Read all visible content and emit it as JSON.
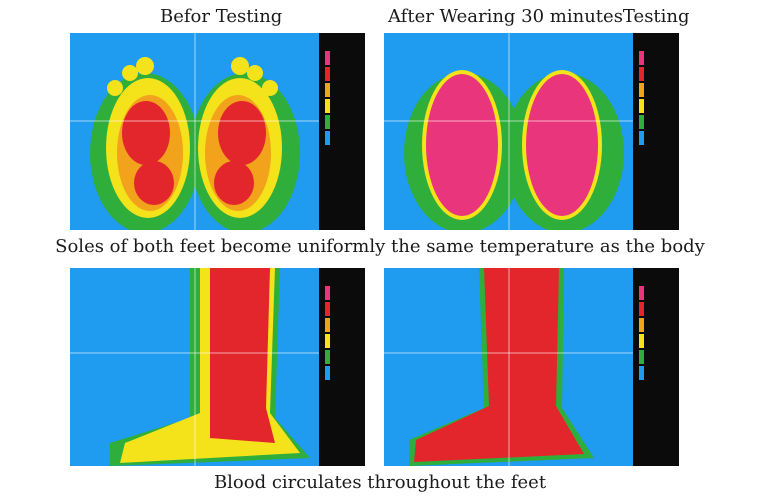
{
  "top_left_label": "Befor Testing",
  "top_right_label": "After Wearing  30 minutesTesting",
  "middle_caption": "Soles of both feet become uniformly the same temperature as the body",
  "bottom_caption": "Blood circulates throughout the feet",
  "colors": {
    "background_blue": "#1f9bf0",
    "cool_green": "#2fae3c",
    "warm_yellow": "#f4e21a",
    "warm_orange": "#f2a21b",
    "hot_red": "#e3262c",
    "hottest_magenta": "#e8357c"
  },
  "icons": {
    "scale_bar": "temperature-scale-icon"
  }
}
